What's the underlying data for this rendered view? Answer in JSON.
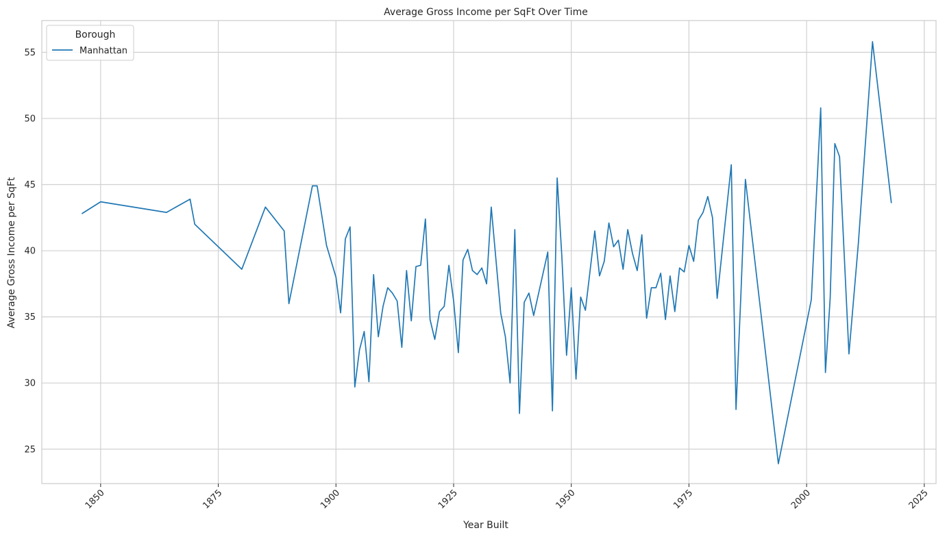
{
  "chart_data": {
    "type": "line",
    "title": "Average Gross Income per SqFt Over Time",
    "xlabel": "Year Built",
    "ylabel": "Average Gross Income per SqFt",
    "xlim": [
      1837.5,
      2027.5
    ],
    "ylim": [
      22.4,
      57.4
    ],
    "xticks": [
      1850,
      1875,
      1900,
      1925,
      1950,
      1975,
      2000,
      2025
    ],
    "yticks": [
      25,
      30,
      35,
      40,
      45,
      50,
      55
    ],
    "grid": true,
    "legend": {
      "title": "Borough",
      "placement": "top-left"
    },
    "series": [
      {
        "name": "Manhattan",
        "color": "#1f77b4",
        "x": [
          1846,
          1850,
          1864,
          1869,
          1870,
          1880,
          1885,
          1889,
          1890,
          1895,
          1896,
          1898,
          1900,
          1901,
          1902,
          1903,
          1904,
          1905,
          1906,
          1907,
          1908,
          1909,
          1910,
          1911,
          1912,
          1913,
          1914,
          1915,
          1916,
          1917,
          1918,
          1919,
          1920,
          1921,
          1922,
          1923,
          1924,
          1925,
          1926,
          1927,
          1928,
          1929,
          1930,
          1931,
          1932,
          1933,
          1935,
          1936,
          1937,
          1938,
          1939,
          1940,
          1941,
          1942,
          1945,
          1946,
          1947,
          1948,
          1949,
          1950,
          1951,
          1952,
          1953,
          1955,
          1956,
          1957,
          1958,
          1959,
          1960,
          1961,
          1962,
          1963,
          1964,
          1965,
          1966,
          1967,
          1968,
          1969,
          1970,
          1971,
          1972,
          1973,
          1974,
          1975,
          1976,
          1977,
          1978,
          1979,
          1980,
          1981,
          1984,
          1985,
          1986,
          1987,
          1994,
          2001,
          2003,
          2004,
          2005,
          2006,
          2007,
          2009,
          2011,
          2014,
          2018
        ],
        "values": [
          42.8,
          43.7,
          42.9,
          43.9,
          42.0,
          38.6,
          43.3,
          41.5,
          36.0,
          44.9,
          44.9,
          40.4,
          38.0,
          35.3,
          40.9,
          41.8,
          29.7,
          32.5,
          33.9,
          30.1,
          38.2,
          33.5,
          35.8,
          37.2,
          36.8,
          36.2,
          32.7,
          38.5,
          34.7,
          38.8,
          38.9,
          42.4,
          34.8,
          33.3,
          35.4,
          35.8,
          38.9,
          36.2,
          32.3,
          39.3,
          40.1,
          38.5,
          38.2,
          38.7,
          37.5,
          43.3,
          35.3,
          33.5,
          30.0,
          41.6,
          27.7,
          36.1,
          36.8,
          35.1,
          39.9,
          27.9,
          45.5,
          39.5,
          32.1,
          37.2,
          30.3,
          36.5,
          35.5,
          41.5,
          38.1,
          39.2,
          42.1,
          40.3,
          40.8,
          38.6,
          41.6,
          39.8,
          38.5,
          41.2,
          34.9,
          37.2,
          37.2,
          38.3,
          34.8,
          38.1,
          35.4,
          38.7,
          38.4,
          40.4,
          39.2,
          42.3,
          42.9,
          44.1,
          42.5,
          36.4,
          46.5,
          28.0,
          36.4,
          45.4,
          23.9,
          36.3,
          50.8,
          30.8,
          36.4,
          48.1,
          47.1,
          32.2,
          40.6,
          55.8,
          43.6
        ]
      }
    ]
  }
}
